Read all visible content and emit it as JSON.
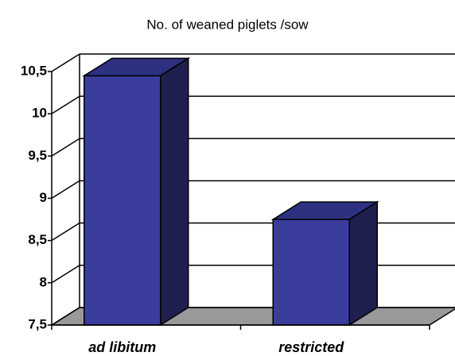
{
  "chart_data": {
    "type": "bar3d",
    "title": "No. of weaned piglets /sow",
    "categories": [
      "ad libitum",
      "restricted"
    ],
    "values": [
      10.45,
      8.75
    ],
    "color": "#3a3d9c",
    "ylim": [
      7.5,
      10.5
    ],
    "yticks": [
      {
        "value": 7.5,
        "label": "7,5"
      },
      8,
      {
        "value": 8.5,
        "label": "8,5"
      },
      9,
      {
        "value": 9.5,
        "label": "9,5"
      },
      10,
      {
        "value": 10.5,
        "label": "10,5"
      }
    ],
    "grid": true
  }
}
